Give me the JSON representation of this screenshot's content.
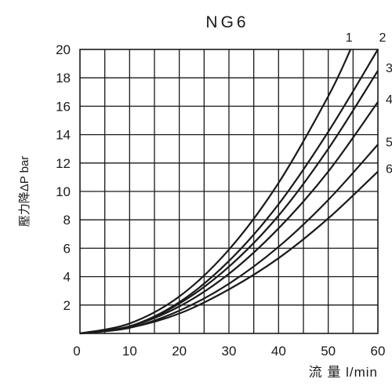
{
  "chart_data": {
    "type": "line",
    "title": "NG6",
    "xlabel": "流 量 l/min",
    "ylabel": "壓力降ΔP bar",
    "xlim": [
      0,
      60
    ],
    "ylim": [
      0,
      20
    ],
    "x_ticks": [
      0,
      10,
      20,
      30,
      40,
      50,
      60
    ],
    "y_ticks": [
      2,
      4,
      6,
      8,
      10,
      12,
      14,
      16,
      18,
      20
    ],
    "grid": true,
    "series": [
      {
        "name": "1",
        "x": [
          0,
          10,
          20,
          30,
          40,
          50,
          54.5
        ],
        "y": [
          0,
          0.7,
          2.6,
          5.9,
          10.6,
          16.7,
          20
        ]
      },
      {
        "name": "2",
        "x": [
          0,
          10,
          20,
          30,
          40,
          50,
          60
        ],
        "y": [
          0,
          0.5,
          2.2,
          5.1,
          9.1,
          14.2,
          20
        ]
      },
      {
        "name": "3",
        "x": [
          0,
          10,
          20,
          30,
          40,
          50,
          60
        ],
        "y": [
          0,
          0.5,
          2.1,
          4.7,
          8.3,
          13.0,
          18.5
        ]
      },
      {
        "name": "4",
        "x": [
          0,
          10,
          20,
          30,
          40,
          50,
          60
        ],
        "y": [
          0,
          0.5,
          1.9,
          4.2,
          7.4,
          11.4,
          16.3
        ]
      },
      {
        "name": "5",
        "x": [
          0,
          10,
          20,
          30,
          40,
          50,
          60
        ],
        "y": [
          0,
          0.4,
          1.6,
          3.5,
          6.1,
          9.4,
          13.3
        ]
      },
      {
        "name": "6",
        "x": [
          0,
          10,
          20,
          30,
          40,
          50,
          60
        ],
        "y": [
          0,
          0.4,
          1.4,
          3.1,
          5.3,
          8.1,
          11.4
        ]
      }
    ]
  }
}
